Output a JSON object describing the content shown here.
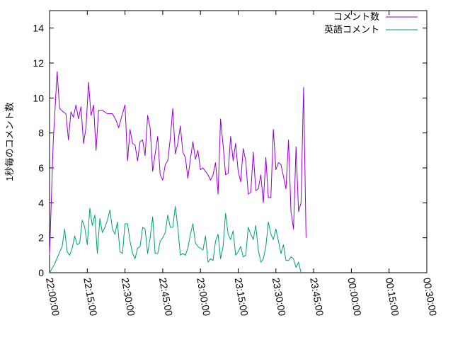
{
  "chart_data": {
    "type": "line",
    "ylabel": "1秒毎のコメント数",
    "xlim": [
      "22:00:00",
      "00:30:00"
    ],
    "ylim": [
      0,
      15
    ],
    "yticks": [
      0,
      2,
      4,
      6,
      8,
      10,
      12,
      14
    ],
    "xticks": [
      "22:00:00",
      "22:15:00",
      "22:30:00",
      "22:45:00",
      "23:00:00",
      "23:15:00",
      "23:30:00",
      "23:45:00",
      "00:00:00",
      "00:15:00",
      "00:30:00"
    ],
    "legend_position": "top-right",
    "grid": false,
    "series": [
      {
        "name": "コメント数",
        "color": "#9400d3",
        "points": [
          [
            "22:00:00",
            1.0
          ],
          [
            "22:01:30",
            7.6
          ],
          [
            "22:03:00",
            11.5
          ],
          [
            "22:04:00",
            9.4
          ],
          [
            "22:05:30",
            9.2
          ],
          [
            "22:06:30",
            9.1
          ],
          [
            "22:07:30",
            7.6
          ],
          [
            "22:08:30",
            9.2
          ],
          [
            "22:09:30",
            8.9
          ],
          [
            "22:10:30",
            9.6
          ],
          [
            "22:11:30",
            8.8
          ],
          [
            "22:12:30",
            9.5
          ],
          [
            "22:13:30",
            7.4
          ],
          [
            "22:14:30",
            8.3
          ],
          [
            "22:15:30",
            10.9
          ],
          [
            "22:16:30",
            9.0
          ],
          [
            "22:17:30",
            9.6
          ],
          [
            "22:18:30",
            7.0
          ],
          [
            "22:19:30",
            9.3
          ],
          [
            "22:21:00",
            9.3
          ],
          [
            "22:23:00",
            9.1
          ],
          [
            "22:25:00",
            9.1
          ],
          [
            "22:26:30",
            8.7
          ],
          [
            "22:27:30",
            8.3
          ],
          [
            "22:29:00",
            9.1
          ],
          [
            "22:30:00",
            9.6
          ],
          [
            "22:31:00",
            6.4
          ],
          [
            "22:32:00",
            8.2
          ],
          [
            "22:33:00",
            7.4
          ],
          [
            "22:34:00",
            7.3
          ],
          [
            "22:35:00",
            6.4
          ],
          [
            "22:36:00",
            7.5
          ],
          [
            "22:37:00",
            7.6
          ],
          [
            "22:38:00",
            6.7
          ],
          [
            "22:39:00",
            9.0
          ],
          [
            "22:40:00",
            8.3
          ],
          [
            "22:41:00",
            5.8
          ],
          [
            "22:42:00",
            6.8
          ],
          [
            "22:43:00",
            7.8
          ],
          [
            "22:44:00",
            5.6
          ],
          [
            "22:45:00",
            5.3
          ],
          [
            "22:46:00",
            6.2
          ],
          [
            "22:47:00",
            6.4
          ],
          [
            "22:48:00",
            7.7
          ],
          [
            "22:49:00",
            9.4
          ],
          [
            "22:50:00",
            6.8
          ],
          [
            "22:51:00",
            7.4
          ],
          [
            "22:52:00",
            8.4
          ],
          [
            "22:53:00",
            6.9
          ],
          [
            "22:54:00",
            6.6
          ],
          [
            "22:55:00",
            5.4
          ],
          [
            "22:56:00",
            6.5
          ],
          [
            "22:57:00",
            7.5
          ],
          [
            "22:58:00",
            6.5
          ],
          [
            "22:59:00",
            7.0
          ],
          [
            "23:00:00",
            5.9
          ],
          [
            "23:01:00",
            6.0
          ],
          [
            "23:02:00",
            5.8
          ],
          [
            "23:03:00",
            5.6
          ],
          [
            "23:04:00",
            5.3
          ],
          [
            "23:05:00",
            5.6
          ],
          [
            "23:06:00",
            6.3
          ],
          [
            "23:07:00",
            4.5
          ],
          [
            "23:08:00",
            8.8
          ],
          [
            "23:09:00",
            7.3
          ],
          [
            "23:10:00",
            5.6
          ],
          [
            "23:11:00",
            5.7
          ],
          [
            "23:12:00",
            7.8
          ],
          [
            "23:13:00",
            6.4
          ],
          [
            "23:14:00",
            7.4
          ],
          [
            "23:15:00",
            5.8
          ],
          [
            "23:16:00",
            5.2
          ],
          [
            "23:17:00",
            7.1
          ],
          [
            "23:18:00",
            6.4
          ],
          [
            "23:19:00",
            4.5
          ],
          [
            "23:20:00",
            4.6
          ],
          [
            "23:21:00",
            6.9
          ],
          [
            "23:22:00",
            4.7
          ],
          [
            "23:23:00",
            4.8
          ],
          [
            "23:24:00",
            5.6
          ],
          [
            "23:25:00",
            4.0
          ],
          [
            "23:26:00",
            6.6
          ],
          [
            "23:27:00",
            4.3
          ],
          [
            "23:28:00",
            4.3
          ],
          [
            "23:29:00",
            8.2
          ],
          [
            "23:30:00",
            5.9
          ],
          [
            "23:31:00",
            6.3
          ],
          [
            "23:32:00",
            6.2
          ],
          [
            "23:33:00",
            5.5
          ],
          [
            "23:34:00",
            4.8
          ],
          [
            "23:35:00",
            7.6
          ],
          [
            "23:36:00",
            3.5
          ],
          [
            "23:37:00",
            2.5
          ],
          [
            "23:38:00",
            7.2
          ],
          [
            "23:39:00",
            3.5
          ],
          [
            "23:40:00",
            4.0
          ],
          [
            "23:41:00",
            10.6
          ],
          [
            "23:42:00",
            2.0
          ]
        ]
      },
      {
        "name": "英語コメント",
        "color": "#009e73",
        "points": [
          [
            "22:00:00",
            0.0
          ],
          [
            "22:02:00",
            0.5
          ],
          [
            "22:03:30",
            1.0
          ],
          [
            "22:05:00",
            1.5
          ],
          [
            "22:06:00",
            2.5
          ],
          [
            "22:07:00",
            1.2
          ],
          [
            "22:08:00",
            1.0
          ],
          [
            "22:09:00",
            1.4
          ],
          [
            "22:10:00",
            2.1
          ],
          [
            "22:11:00",
            1.6
          ],
          [
            "22:12:00",
            1.7
          ],
          [
            "22:13:00",
            3.0
          ],
          [
            "22:14:00",
            2.6
          ],
          [
            "22:15:00",
            1.6
          ],
          [
            "22:16:00",
            3.7
          ],
          [
            "22:17:00",
            2.7
          ],
          [
            "22:18:00",
            3.3
          ],
          [
            "22:19:00",
            1.1
          ],
          [
            "22:20:00",
            3.1
          ],
          [
            "22:21:00",
            2.3
          ],
          [
            "22:22:00",
            2.6
          ],
          [
            "22:23:00",
            3.0
          ],
          [
            "22:24:00",
            3.6
          ],
          [
            "22:25:00",
            2.5
          ],
          [
            "22:26:00",
            2.2
          ],
          [
            "22:27:00",
            2.9
          ],
          [
            "22:28:00",
            1.2
          ],
          [
            "22:29:00",
            1.1
          ],
          [
            "22:30:00",
            2.8
          ],
          [
            "22:31:00",
            2.8
          ],
          [
            "22:32:00",
            1.8
          ],
          [
            "22:33:00",
            1.1
          ],
          [
            "22:34:00",
            0.8
          ],
          [
            "22:35:00",
            1.4
          ],
          [
            "22:36:00",
            1.5
          ],
          [
            "22:37:00",
            2.6
          ],
          [
            "22:38:00",
            2.5
          ],
          [
            "22:39:00",
            1.1
          ],
          [
            "22:40:00",
            2.0
          ],
          [
            "22:41:00",
            3.2
          ],
          [
            "22:42:00",
            1.1
          ],
          [
            "22:43:00",
            1.1
          ],
          [
            "22:44:00",
            1.8
          ],
          [
            "22:45:00",
            2.0
          ],
          [
            "22:46:00",
            2.3
          ],
          [
            "22:47:00",
            3.3
          ],
          [
            "22:48:00",
            2.6
          ],
          [
            "22:49:00",
            2.6
          ],
          [
            "22:50:00",
            3.8
          ],
          [
            "22:51:00",
            2.6
          ],
          [
            "22:52:00",
            1.0
          ],
          [
            "22:53:00",
            1.1
          ],
          [
            "22:54:00",
            1.0
          ],
          [
            "22:55:00",
            1.4
          ],
          [
            "22:56:00",
            2.2
          ],
          [
            "22:57:00",
            2.8
          ],
          [
            "22:58:00",
            1.7
          ],
          [
            "22:59:00",
            1.5
          ],
          [
            "23:00:00",
            1.4
          ],
          [
            "23:01:00",
            1.3
          ],
          [
            "23:02:00",
            2.1
          ],
          [
            "23:03:00",
            0.6
          ],
          [
            "23:04:00",
            0.8
          ],
          [
            "23:05:00",
            0.7
          ],
          [
            "23:06:00",
            1.8
          ],
          [
            "23:07:00",
            2.2
          ],
          [
            "23:08:00",
            0.8
          ],
          [
            "23:09:00",
            1.5
          ],
          [
            "23:10:00",
            3.4
          ],
          [
            "23:11:00",
            2.2
          ],
          [
            "23:12:00",
            1.9
          ],
          [
            "23:13:00",
            2.4
          ],
          [
            "23:14:00",
            1.0
          ],
          [
            "23:15:00",
            1.2
          ],
          [
            "23:16:00",
            1.5
          ],
          [
            "23:17:00",
            0.9
          ],
          [
            "23:18:00",
            1.0
          ],
          [
            "23:19:00",
            2.6
          ],
          [
            "23:20:00",
            2.2
          ],
          [
            "23:21:00",
            1.9
          ],
          [
            "23:22:00",
            2.7
          ],
          [
            "23:23:00",
            1.3
          ],
          [
            "23:24:00",
            0.6
          ],
          [
            "23:25:00",
            0.8
          ],
          [
            "23:26:00",
            1.5
          ],
          [
            "23:27:00",
            2.9
          ],
          [
            "23:28:00",
            2.2
          ],
          [
            "23:29:00",
            1.9
          ],
          [
            "23:30:00",
            2.5
          ],
          [
            "23:31:00",
            1.8
          ],
          [
            "23:32:00",
            1.1
          ],
          [
            "23:33:00",
            1.6
          ],
          [
            "23:34:00",
            0.7
          ],
          [
            "23:35:00",
            0.7
          ],
          [
            "23:36:00",
            0.9
          ],
          [
            "23:37:00",
            0.8
          ],
          [
            "23:38:00",
            0.3
          ],
          [
            "23:39:00",
            0.6
          ],
          [
            "23:40:00",
            0.0
          ]
        ]
      }
    ]
  }
}
